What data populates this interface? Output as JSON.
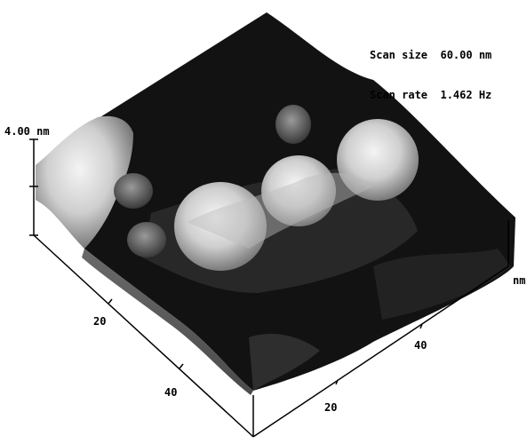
{
  "scan_info": {
    "size_label": "Scan size",
    "size_value": "60.00 nm",
    "rate_label": "Scan rate",
    "rate_value": "1.462 Hz"
  },
  "z_axis": {
    "max_label": "4.00 nm"
  },
  "left_axis": {
    "ticks": [
      "20",
      "40"
    ]
  },
  "right_axis": {
    "ticks": [
      "20",
      "40"
    ],
    "unit": "nm"
  }
}
